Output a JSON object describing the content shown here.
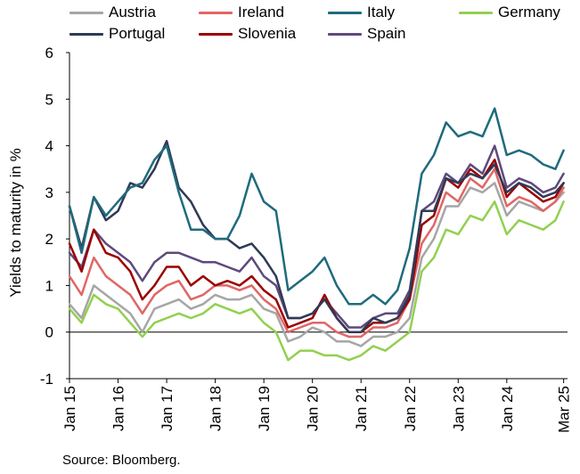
{
  "chart_data": {
    "type": "line",
    "ylabel": "Yields to maturity in %",
    "ylim": [
      -1,
      6
    ],
    "yticks": [
      "6",
      "5",
      "4",
      "3",
      "2",
      "1",
      "0",
      "-1"
    ],
    "xlim": [
      2015,
      2025.25
    ],
    "x_tick_labels": [
      "Jan 15",
      "Jan 16",
      "Jan 17",
      "Jan 18",
      "Jan 19",
      "Jan 20",
      "Jan 21",
      "Jan 22",
      "Jan 23",
      "Jan 24",
      "Mar 25"
    ],
    "x_tick_values": [
      2015,
      2016,
      2017,
      2018,
      2019,
      2020,
      2021,
      2022,
      2023,
      2024,
      2025.17
    ],
    "grid": false,
    "legend_position": "top",
    "x": [
      2015,
      2015.25,
      2015.5,
      2015.75,
      2016,
      2016.25,
      2016.5,
      2016.75,
      2017,
      2017.25,
      2017.5,
      2017.75,
      2018,
      2018.25,
      2018.5,
      2018.75,
      2019,
      2019.25,
      2019.5,
      2019.75,
      2020,
      2020.25,
      2020.5,
      2020.75,
      2021,
      2021.25,
      2021.5,
      2021.75,
      2022,
      2022.25,
      2022.5,
      2022.75,
      2023,
      2023.25,
      2023.5,
      2023.75,
      2024,
      2024.25,
      2024.5,
      2024.75,
      2025,
      2025.17
    ],
    "series": [
      {
        "name": "Austria",
        "color": "#a6a6a6",
        "values": [
          0.6,
          0.3,
          1.0,
          0.8,
          0.6,
          0.4,
          0.0,
          0.5,
          0.6,
          0.7,
          0.5,
          0.6,
          0.8,
          0.7,
          0.7,
          0.8,
          0.5,
          0.4,
          -0.2,
          -0.1,
          0.1,
          0.0,
          -0.2,
          -0.2,
          -0.3,
          -0.1,
          -0.1,
          0.0,
          0.3,
          1.6,
          2.0,
          2.7,
          2.7,
          3.1,
          3.0,
          3.2,
          2.5,
          2.8,
          2.7,
          2.6,
          2.8,
          3.0
        ]
      },
      {
        "name": "Ireland",
        "color": "#e06666",
        "values": [
          1.2,
          0.8,
          1.6,
          1.2,
          1.0,
          0.8,
          0.4,
          0.8,
          1.0,
          1.1,
          0.7,
          0.8,
          1.0,
          1.0,
          0.9,
          1.0,
          0.7,
          0.5,
          0.0,
          0.1,
          0.2,
          0.2,
          0.0,
          -0.1,
          -0.1,
          0.1,
          0.1,
          0.2,
          0.7,
          1.9,
          2.3,
          3.0,
          2.8,
          3.3,
          3.1,
          3.5,
          2.7,
          2.9,
          2.8,
          2.6,
          2.8,
          3.1
        ]
      },
      {
        "name": "Italy",
        "color": "#1f6b7d",
        "values": [
          2.7,
          1.7,
          2.9,
          2.5,
          2.8,
          3.1,
          3.2,
          3.7,
          4.0,
          3.0,
          2.2,
          2.2,
          2.0,
          2.0,
          2.5,
          3.4,
          2.8,
          2.6,
          0.9,
          1.1,
          1.3,
          1.6,
          1.0,
          0.6,
          0.6,
          0.8,
          0.6,
          0.9,
          1.8,
          3.4,
          3.8,
          4.5,
          4.2,
          4.3,
          4.2,
          4.8,
          3.8,
          3.9,
          3.8,
          3.6,
          3.5,
          3.9
        ]
      },
      {
        "name": "Germany",
        "color": "#92d050",
        "values": [
          0.5,
          0.2,
          0.8,
          0.6,
          0.5,
          0.2,
          -0.1,
          0.2,
          0.3,
          0.4,
          0.3,
          0.4,
          0.6,
          0.5,
          0.4,
          0.5,
          0.2,
          0.0,
          -0.6,
          -0.4,
          -0.4,
          -0.5,
          -0.5,
          -0.6,
          -0.5,
          -0.3,
          -0.4,
          -0.2,
          0.0,
          1.3,
          1.6,
          2.2,
          2.1,
          2.5,
          2.4,
          2.8,
          2.1,
          2.4,
          2.3,
          2.2,
          2.4,
          2.8
        ]
      },
      {
        "name": "Portugal",
        "color": "#2f3a56",
        "values": [
          2.7,
          1.8,
          2.9,
          2.4,
          2.6,
          3.2,
          3.1,
          3.5,
          4.1,
          3.1,
          2.8,
          2.3,
          2.0,
          2.0,
          1.8,
          1.9,
          1.6,
          1.2,
          0.3,
          0.3,
          0.4,
          0.7,
          0.3,
          0.0,
          0.0,
          0.3,
          0.2,
          0.3,
          0.8,
          2.6,
          2.6,
          3.3,
          3.2,
          3.4,
          3.3,
          3.6,
          3.0,
          3.2,
          3.1,
          2.9,
          3.0,
          3.2
        ]
      },
      {
        "name": "Slovenia",
        "color": "#9b0000",
        "values": [
          1.9,
          1.3,
          2.2,
          1.7,
          1.6,
          1.3,
          0.7,
          1.0,
          1.4,
          1.4,
          1.0,
          1.2,
          1.0,
          1.1,
          1.0,
          1.2,
          0.9,
          0.7,
          0.1,
          0.2,
          0.3,
          0.8,
          0.3,
          0.0,
          0.0,
          0.2,
          0.2,
          0.3,
          0.7,
          2.3,
          2.5,
          3.3,
          3.1,
          3.5,
          3.3,
          3.7,
          2.9,
          3.2,
          3.0,
          2.8,
          2.9,
          3.2
        ]
      },
      {
        "name": "Spain",
        "color": "#5e4a7d",
        "values": [
          1.7,
          1.4,
          2.2,
          1.9,
          1.7,
          1.5,
          1.1,
          1.5,
          1.7,
          1.7,
          1.6,
          1.5,
          1.5,
          1.4,
          1.3,
          1.6,
          1.2,
          1.0,
          0.3,
          0.3,
          0.4,
          0.7,
          0.4,
          0.1,
          0.1,
          0.3,
          0.4,
          0.4,
          0.9,
          2.6,
          2.8,
          3.4,
          3.2,
          3.6,
          3.4,
          4.0,
          3.1,
          3.3,
          3.2,
          3.0,
          3.1,
          3.4
        ]
      }
    ]
  },
  "source": "Source: Bloomberg."
}
